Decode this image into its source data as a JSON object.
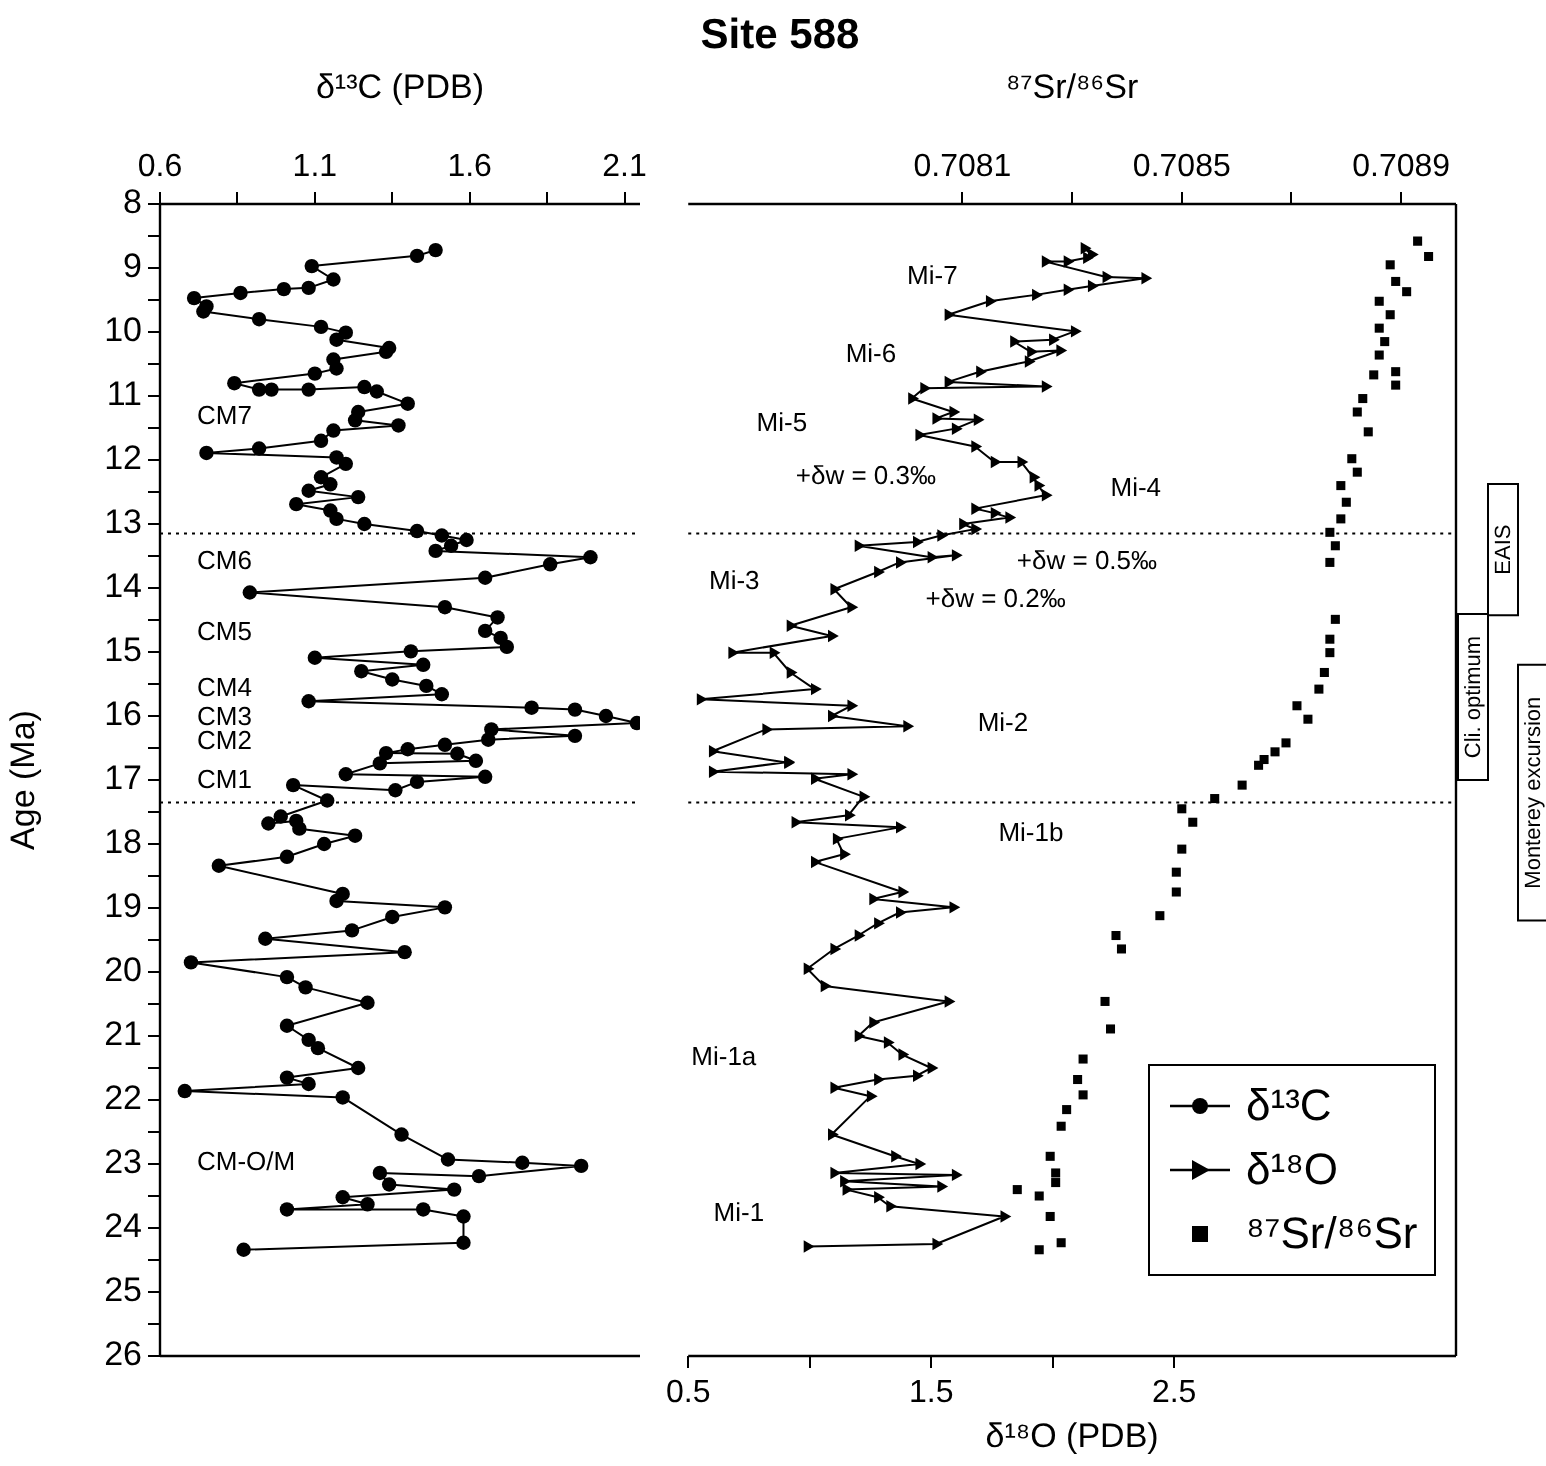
{
  "chart_data": [
    {
      "type": "line",
      "xlabel": "δ¹³C (PDB)",
      "ylabel": "Age (Ma)",
      "xlim": [
        0.6,
        2.15
      ],
      "xticks": [
        0.6,
        {
          "value": 0.85,
          "label": null
        },
        1.1,
        {
          "value": 1.35,
          "label": null
        },
        1.6,
        {
          "value": 1.85,
          "label": null
        },
        2.1
      ],
      "ylim": [
        26,
        8
      ],
      "yticks": [
        8,
        {
          "value": 8.5,
          "label": null
        },
        9,
        {
          "value": 9.5,
          "label": null
        },
        10,
        {
          "value": 10.5,
          "label": null
        },
        11,
        {
          "value": 11.5,
          "label": null
        },
        12,
        {
          "value": 12.5,
          "label": null
        },
        13,
        {
          "value": 13.5,
          "label": null
        },
        14,
        {
          "value": 14.5,
          "label": null
        },
        15,
        {
          "value": 15.5,
          "label": null
        },
        16,
        {
          "value": 16.5,
          "label": null
        },
        17,
        {
          "value": 17.5,
          "label": null
        },
        18,
        {
          "value": 18.5,
          "label": null
        },
        19,
        {
          "value": 19.5,
          "label": null
        },
        20,
        {
          "value": 20.5,
          "label": null
        },
        21,
        {
          "value": 21.5,
          "label": null
        },
        22,
        {
          "value": 22.5,
          "label": null
        },
        23,
        {
          "value": 23.5,
          "label": null
        },
        24,
        {
          "value": 24.5,
          "label": null
        },
        25,
        {
          "value": 25.5,
          "label": null
        },
        26
      ],
      "series": [
        {
          "name": "δ¹³C",
          "color": "#000000",
          "marker": "circle",
          "x": [
            1.49,
            1.43,
            1.09,
            1.16,
            1.08,
            1.0,
            0.86,
            0.71,
            0.75,
            0.74,
            0.92,
            1.12,
            1.2,
            1.17,
            1.34,
            1.33,
            1.16,
            1.17,
            1.1,
            0.84,
            0.92,
            0.96,
            1.08,
            1.26,
            1.3,
            1.4,
            1.24,
            1.23,
            1.37,
            1.16,
            1.12,
            0.92,
            0.75,
            1.17,
            1.2,
            1.12,
            1.15,
            1.08,
            1.24,
            1.04,
            1.15,
            1.17,
            1.26,
            1.43,
            1.51,
            1.59,
            1.54,
            1.49,
            1.99,
            1.86,
            1.65,
            0.89,
            1.52,
            1.69,
            1.65,
            1.7,
            1.72,
            1.41,
            1.1,
            1.45,
            1.25,
            1.35,
            1.46,
            1.51,
            1.08,
            1.8,
            1.94,
            2.04,
            2.14,
            1.67,
            1.94,
            1.66,
            1.52,
            1.4,
            1.33,
            1.56,
            1.62,
            1.31,
            1.2,
            1.65,
            1.43,
            1.36,
            1.03,
            1.14,
            0.99,
            0.95,
            1.04,
            1.05,
            1.23,
            1.13,
            1.01,
            0.79,
            1.19,
            1.17,
            1.52,
            1.35,
            1.22,
            0.94,
            1.39,
            0.7,
            1.01,
            1.07,
            1.27,
            1.01,
            1.08,
            1.11,
            1.24,
            1.01,
            1.08,
            0.68,
            1.19,
            1.38,
            1.53,
            1.77,
            1.96,
            1.63,
            1.31,
            1.34,
            1.55,
            1.19,
            1.27,
            1.01,
            1.45,
            1.58,
            1.58,
            0.87
          ],
          "values": [
            8.72,
            8.81,
            8.97,
            9.18,
            9.31,
            9.33,
            9.39,
            9.47,
            9.6,
            9.68,
            9.8,
            9.92,
            10.01,
            10.12,
            10.25,
            10.31,
            10.43,
            10.57,
            10.65,
            10.8,
            10.9,
            10.9,
            10.9,
            10.86,
            10.93,
            11.12,
            11.25,
            11.38,
            11.46,
            11.54,
            11.7,
            11.82,
            11.89,
            11.96,
            12.06,
            12.27,
            12.38,
            12.48,
            12.58,
            12.69,
            12.79,
            12.92,
            13.0,
            13.11,
            13.18,
            13.25,
            13.34,
            13.42,
            13.52,
            13.63,
            13.84,
            14.07,
            14.3,
            14.46,
            14.67,
            14.78,
            14.92,
            14.99,
            15.09,
            15.2,
            15.3,
            15.43,
            15.53,
            15.66,
            15.77,
            15.87,
            15.9,
            16.0,
            16.11,
            16.21,
            16.31,
            16.37,
            16.45,
            16.52,
            16.58,
            16.59,
            16.7,
            16.74,
            16.91,
            16.95,
            17.03,
            17.16,
            17.08,
            17.32,
            17.57,
            17.68,
            17.64,
            17.76,
            17.87,
            18.0,
            18.2,
            18.34,
            18.78,
            18.89,
            18.99,
            19.14,
            19.35,
            19.48,
            19.69,
            19.85,
            20.08,
            20.24,
            20.48,
            20.84,
            21.06,
            21.19,
            21.5,
            21.65,
            21.75,
            21.86,
            21.96,
            22.54,
            22.93,
            22.98,
            23.03,
            23.19,
            23.14,
            23.32,
            23.4,
            23.52,
            23.63,
            23.71,
            23.71,
            23.82,
            24.23,
            24.34
          ]
        }
      ],
      "ref_lines": [
        {
          "axis": "y",
          "value": 13.15,
          "line_style": "dotted"
        },
        {
          "axis": "y",
          "value": 17.35,
          "line_style": "dotted"
        }
      ],
      "annotations": [
        "CM7",
        "CM6",
        "CM5",
        "CM4",
        "CM3",
        "CM2",
        "CM1",
        "CM-O/M"
      ],
      "legend": false
    },
    {
      "type": "line",
      "title": "Site 588",
      "xlabel": "δ¹⁸O (PDB)",
      "x2label": "⁸⁷Sr/⁸⁶Sr",
      "xlim": [
        0.5,
        3.66
      ],
      "xticks": [
        0.5,
        {
          "value": 1.0,
          "label": null
        },
        1.5,
        {
          "value": 2.0,
          "label": null
        },
        2.5
      ],
      "x2lim": [
        0.7076,
        0.709
      ],
      "x2ticks": [
        0.7081,
        {
          "value": 0.7083,
          "label": null
        },
        0.7085,
        {
          "value": 0.7087,
          "label": null
        },
        0.7089
      ],
      "ylim": [
        26,
        8
      ],
      "tick_labels": "x",
      "series": [
        {
          "name": "δ¹⁸O",
          "color": "#000000",
          "marker": "triangle",
          "x": [
            2.13,
            2.16,
            2.14,
            2.06,
            1.97,
            2.22,
            2.38,
            2.16,
            2.06,
            1.93,
            1.74,
            1.57,
            2.09,
            2.0,
            1.84,
            1.91,
            2.03,
            1.9,
            1.7,
            1.57,
            1.97,
            1.47,
            1.42,
            1.59,
            1.52,
            1.69,
            1.6,
            1.45,
            1.68,
            1.76,
            1.87,
            1.92,
            1.94,
            1.97,
            1.68,
            1.76,
            1.82,
            1.63,
            1.68,
            1.54,
            1.44,
            1.2,
            1.5,
            1.6,
            1.37,
            1.28,
            1.1,
            1.17,
            0.92,
            1.09,
            0.68,
            0.85,
            0.92,
            1.02,
            0.55,
            1.17,
            1.09,
            1.4,
            0.82,
            0.6,
            0.91,
            0.91,
            0.6,
            1.17,
            1.02,
            1.22,
            1.16,
            0.94,
            1.37,
            1.11,
            1.14,
            1.02,
            1.38,
            1.26,
            1.59,
            1.37,
            1.28,
            1.2,
            1.1,
            0.99,
            1.06,
            1.57,
            1.26,
            1.2,
            1.32,
            1.38,
            1.5,
            1.44,
            1.28,
            1.1,
            1.25,
            1.09,
            1.35,
            1.45,
            1.1,
            1.6,
            1.14,
            1.54,
            1.15,
            1.28,
            1.33,
            1.8,
            1.52,
            0.99
          ],
          "values": [
            8.69,
            8.79,
            8.84,
            8.9,
            8.9,
            9.14,
            9.16,
            9.28,
            9.34,
            9.42,
            9.52,
            9.73,
            9.99,
            10.12,
            10.15,
            10.31,
            10.29,
            10.46,
            10.62,
            10.78,
            10.85,
            10.88,
            11.04,
            11.25,
            11.35,
            11.37,
            11.51,
            11.61,
            11.79,
            12.03,
            12.03,
            12.27,
            12.4,
            12.55,
            12.76,
            12.83,
            12.9,
            13.0,
            13.08,
            13.18,
            13.28,
            13.34,
            13.52,
            13.49,
            13.6,
            13.75,
            14.02,
            14.3,
            14.59,
            14.75,
            15.01,
            15.01,
            15.32,
            15.58,
            15.74,
            15.84,
            16.0,
            16.16,
            16.21,
            16.55,
            16.73,
            16.72,
            16.87,
            16.91,
            16.98,
            17.26,
            17.55,
            17.66,
            17.74,
            17.92,
            18.16,
            18.28,
            18.75,
            18.86,
            18.99,
            19.07,
            19.24,
            19.43,
            19.64,
            19.95,
            20.22,
            20.46,
            20.79,
            21.0,
            21.1,
            21.29,
            21.5,
            21.62,
            21.68,
            21.81,
            21.94,
            22.54,
            22.88,
            23.0,
            23.14,
            23.17,
            23.27,
            23.35,
            23.4,
            23.52,
            23.66,
            23.82,
            24.25,
            24.29
          ]
        },
        {
          "name": "⁸⁷Sr/⁸⁶Sr",
          "type": "scatter",
          "axis": "x2",
          "color": "#000000",
          "marker": "square",
          "x": [
            0.70893,
            0.70895,
            0.70888,
            0.70889,
            0.70891,
            0.70886,
            0.70888,
            0.70886,
            0.70887,
            0.70886,
            0.70889,
            0.70885,
            0.70889,
            0.70883,
            0.70882,
            0.70884,
            0.70881,
            0.70882,
            0.70879,
            0.7088,
            0.70879,
            0.70877,
            0.70878,
            0.70877,
            0.70878,
            0.70877,
            0.70877,
            0.70876,
            0.70875,
            0.70871,
            0.70873,
            0.70869,
            0.70867,
            0.70865,
            0.70864,
            0.70861,
            0.70856,
            0.7085,
            0.70852,
            0.7085,
            0.70849,
            0.70849,
            0.70846,
            0.70838,
            0.70839,
            0.70836,
            0.70837,
            0.70832,
            0.70831,
            0.70832,
            0.70829,
            0.70828,
            0.70826,
            0.70827,
            0.70827,
            0.7082,
            0.70824,
            0.70826,
            0.70828,
            0.70824
          ],
          "values": [
            8.58,
            8.82,
            8.95,
            9.21,
            9.37,
            9.52,
            9.73,
            9.94,
            10.15,
            10.36,
            10.62,
            10.67,
            10.83,
            11.04,
            11.25,
            11.56,
            11.98,
            12.19,
            12.4,
            12.66,
            12.92,
            13.13,
            13.34,
            13.6,
            14.49,
            14.8,
            15.01,
            15.32,
            15.58,
            15.84,
            16.05,
            16.42,
            16.56,
            16.68,
            16.77,
            17.08,
            17.29,
            17.45,
            17.66,
            18.08,
            18.44,
            18.75,
            19.12,
            19.43,
            19.64,
            20.46,
            20.89,
            21.36,
            21.68,
            21.92,
            22.15,
            22.41,
            22.88,
            23.14,
            23.29,
            23.4,
            23.5,
            23.82,
            24.23,
            24.34
          ]
        }
      ],
      "ref_lines": [
        {
          "axis": "y",
          "value": 13.15,
          "line_style": "dotted"
        },
        {
          "axis": "y",
          "value": 17.35,
          "line_style": "dotted"
        }
      ],
      "annotations": [
        "Mi-7",
        "Mi-6",
        "Mi-5",
        "+δw = 0.3‰",
        "Mi-4",
        "+δw = 0.5‰",
        "Mi-3",
        "+δw = 0.2‰",
        "Mi-2",
        "Mi-1b",
        "Mi-1a",
        "Mi-1",
        "Cli. optimum",
        "EAIS",
        "Monterey excursion"
      ],
      "legend": "bottom right"
    }
  ]
}
